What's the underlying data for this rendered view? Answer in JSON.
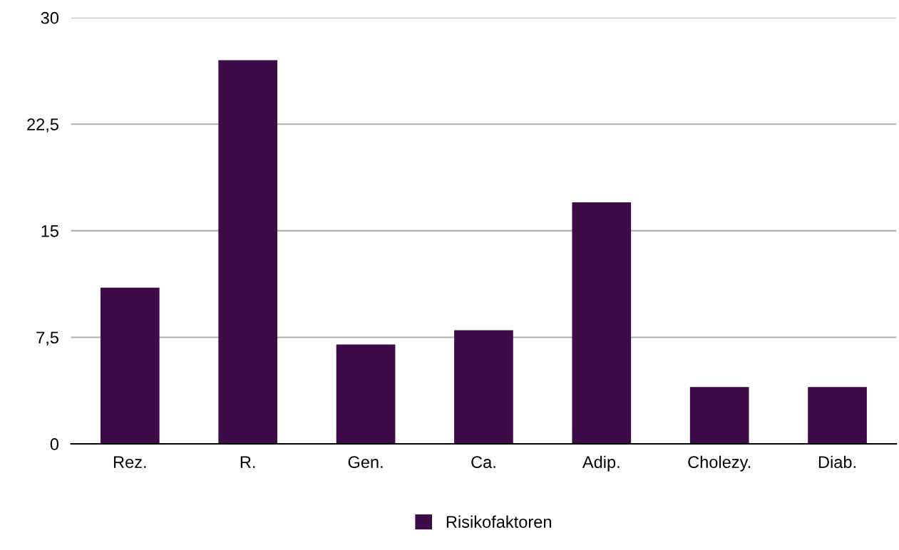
{
  "chart_data": {
    "type": "bar",
    "categories": [
      "Rez.",
      "R.",
      "Gen.",
      "Ca.",
      "Adip.",
      "Cholezy.",
      "Diab."
    ],
    "series": [
      {
        "name": "Risikofaktoren",
        "color": "#3d0c48",
        "values": [
          11,
          27,
          7,
          8,
          17,
          4,
          4
        ]
      }
    ],
    "ylim": [
      0,
      30
    ],
    "yticks": [
      0,
      {
        "value": 7.5,
        "label": "7,5"
      },
      15,
      {
        "value": 22.5,
        "label": "22,5"
      },
      30
    ],
    "grid": "y",
    "legend": "bottom"
  }
}
